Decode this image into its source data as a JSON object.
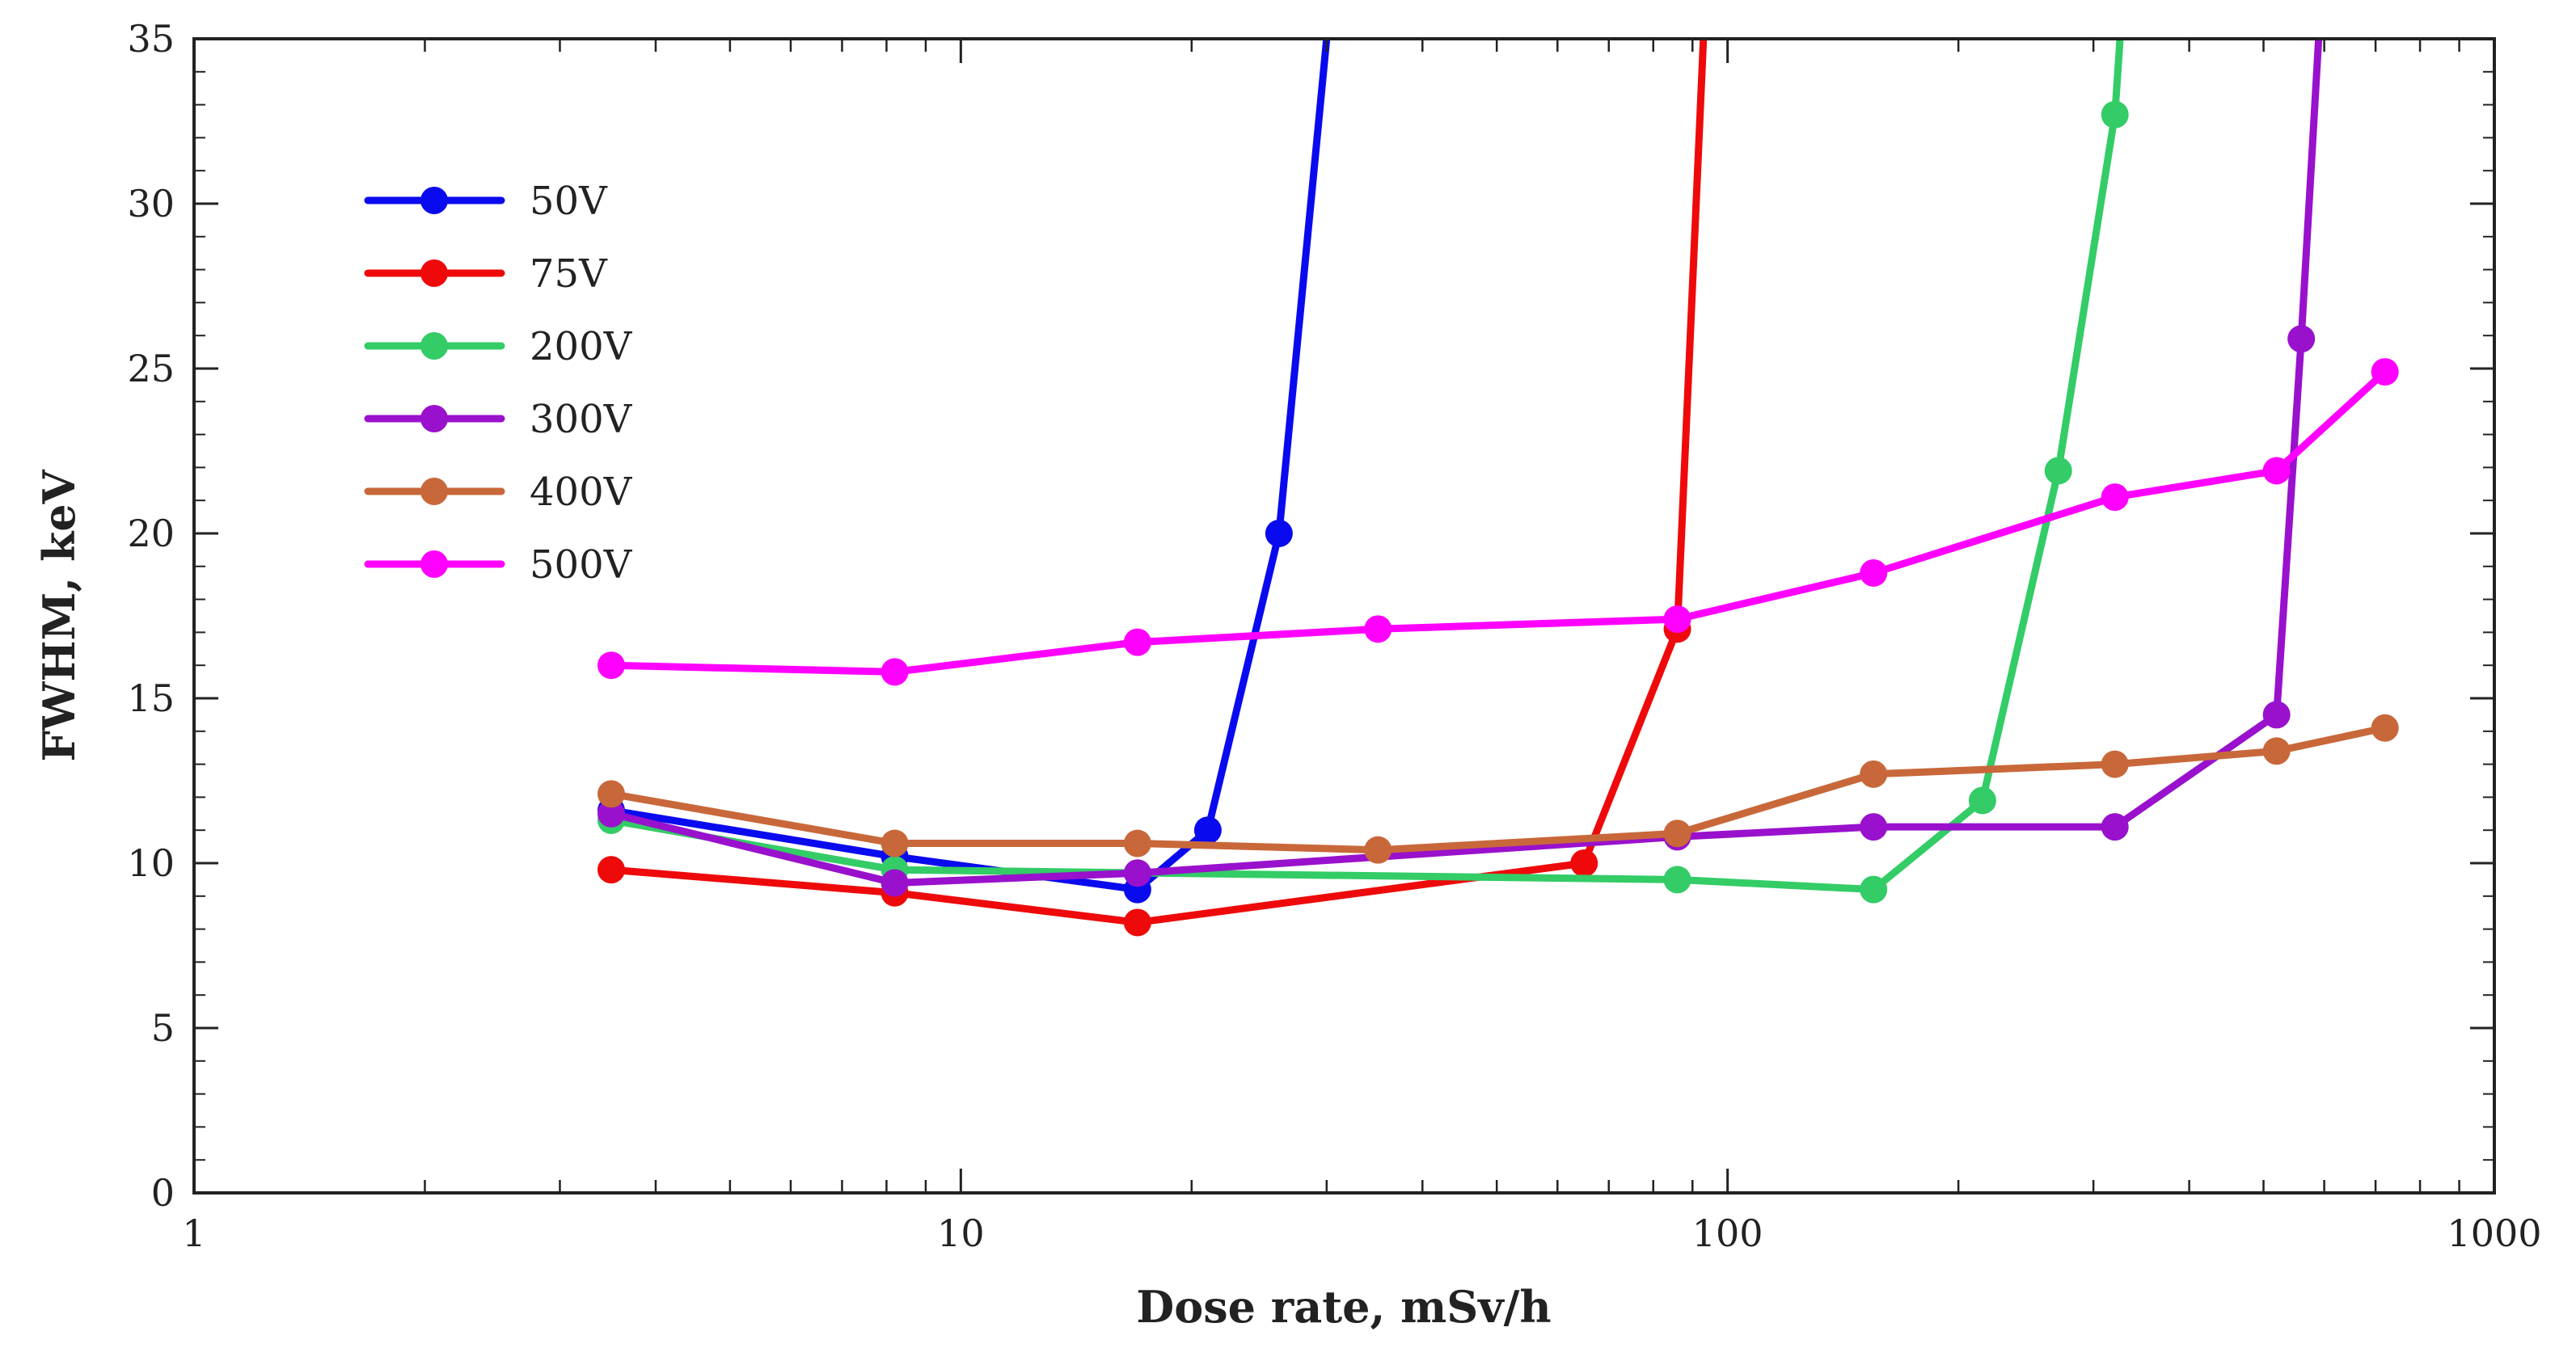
{
  "chart_data": {
    "type": "line",
    "title": "",
    "xlabel": "Dose rate, mSv/h",
    "ylabel": "FWHM, keV",
    "xscale": "log",
    "xlim": [
      1,
      1000
    ],
    "ylim": [
      0,
      35
    ],
    "xticks": [
      1,
      10,
      100,
      1000
    ],
    "xtick_labels": [
      "1",
      "10",
      "100",
      "1000"
    ],
    "yticks": [
      0,
      5,
      10,
      15,
      20,
      25,
      30,
      35
    ],
    "ytick_labels": [
      "0",
      "5",
      "10",
      "15",
      "20",
      "25",
      "30",
      "35"
    ],
    "grid": false,
    "legend_position": "top-left",
    "series": [
      {
        "name": "50V",
        "color": "#0a0aee",
        "x": [
          3.5,
          8.2,
          17,
          21,
          26
        ],
        "y": [
          11.6,
          10.2,
          9.2,
          11.0,
          20.0
        ],
        "tail_to": [
          30,
          35
        ]
      },
      {
        "name": "75V",
        "color": "#ee0a0a",
        "x": [
          3.5,
          8.2,
          17,
          65,
          86
        ],
        "y": [
          9.8,
          9.1,
          8.2,
          10.0,
          17.1
        ],
        "tail_to": [
          93,
          35
        ]
      },
      {
        "name": "200V",
        "color": "#33cc66",
        "x": [
          3.5,
          8.2,
          86,
          155,
          215,
          270,
          320
        ],
        "y": [
          11.3,
          9.8,
          9.5,
          9.2,
          11.9,
          21.9,
          32.7
        ],
        "tail_to": [
          325,
          35
        ]
      },
      {
        "name": "300V",
        "color": "#9911cc",
        "x": [
          3.5,
          8.2,
          17,
          86,
          155,
          320,
          520,
          560
        ],
        "y": [
          11.5,
          9.4,
          9.7,
          10.8,
          11.1,
          11.1,
          14.5,
          25.9
        ],
        "tail_to": [
          590,
          35
        ]
      },
      {
        "name": "400V",
        "color": "#c8683a",
        "x": [
          3.5,
          8.2,
          17,
          35,
          86,
          155,
          320,
          520,
          720
        ],
        "y": [
          12.1,
          10.6,
          10.6,
          10.4,
          10.9,
          12.7,
          13.0,
          13.4,
          14.1
        ]
      },
      {
        "name": "500V",
        "color": "#ff00ff",
        "x": [
          3.5,
          8.2,
          17,
          35,
          86,
          155,
          320,
          520,
          720
        ],
        "y": [
          16.0,
          15.8,
          16.7,
          17.1,
          17.4,
          18.8,
          21.1,
          21.9,
          24.9
        ]
      }
    ]
  }
}
